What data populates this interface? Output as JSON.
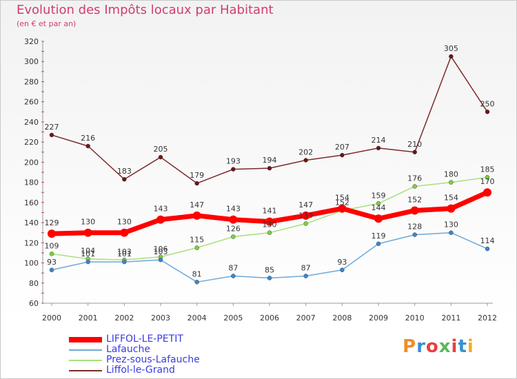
{
  "header": {
    "title": "Evolution des Impôts locaux par Habitant",
    "subtitle": "(en € et par an)"
  },
  "brand": {
    "text": "Proxiti",
    "colors": [
      "#f28c28",
      "#3a8fd0",
      "#e94040",
      "#5cb85c",
      "#e94040",
      "#3a8fd0",
      "#f0b020"
    ]
  },
  "chart_data": {
    "type": "line",
    "title": "Evolution des Impôts locaux par Habitant",
    "subtitle": "(en € et par an)",
    "x": [
      "2000",
      "2001",
      "2002",
      "2003",
      "2004",
      "2005",
      "2006",
      "2007",
      "2008",
      "2009",
      "2010",
      "2011",
      "2012"
    ],
    "ylim": [
      60,
      320
    ],
    "yticks": [
      60,
      80,
      100,
      120,
      140,
      160,
      180,
      200,
      220,
      240,
      260,
      280,
      300,
      320
    ],
    "grid": false,
    "legend_position": "bottom-left",
    "series": [
      {
        "name": "LIFFOL-LE-PETIT",
        "color": "#ff0000",
        "width": 7,
        "marker": "#ff0000",
        "values": [
          129,
          130,
          130,
          143,
          147,
          143,
          141,
          147,
          154,
          144,
          152,
          154,
          170
        ]
      },
      {
        "name": "Lafauche",
        "color": "#6fa8d6",
        "width": 1.5,
        "marker": "#3a86d0",
        "values": [
          93,
          101,
          101,
          103,
          81,
          87,
          85,
          87,
          93,
          119,
          128,
          130,
          114
        ]
      },
      {
        "name": "Prez-sous-Lafauche",
        "color": "#a6e07a",
        "width": 1.5,
        "marker": "#7dcf3f",
        "values": [
          109,
          104,
          103,
          106,
          115,
          126,
          130,
          139,
          152,
          159,
          176,
          180,
          185
        ]
      },
      {
        "name": "Liffol-le-Grand",
        "color": "#7b2a2a",
        "width": 1.5,
        "marker": "#6b1616",
        "values": [
          227,
          216,
          183,
          205,
          179,
          193,
          194,
          202,
          207,
          214,
          210,
          305,
          250
        ]
      }
    ]
  }
}
